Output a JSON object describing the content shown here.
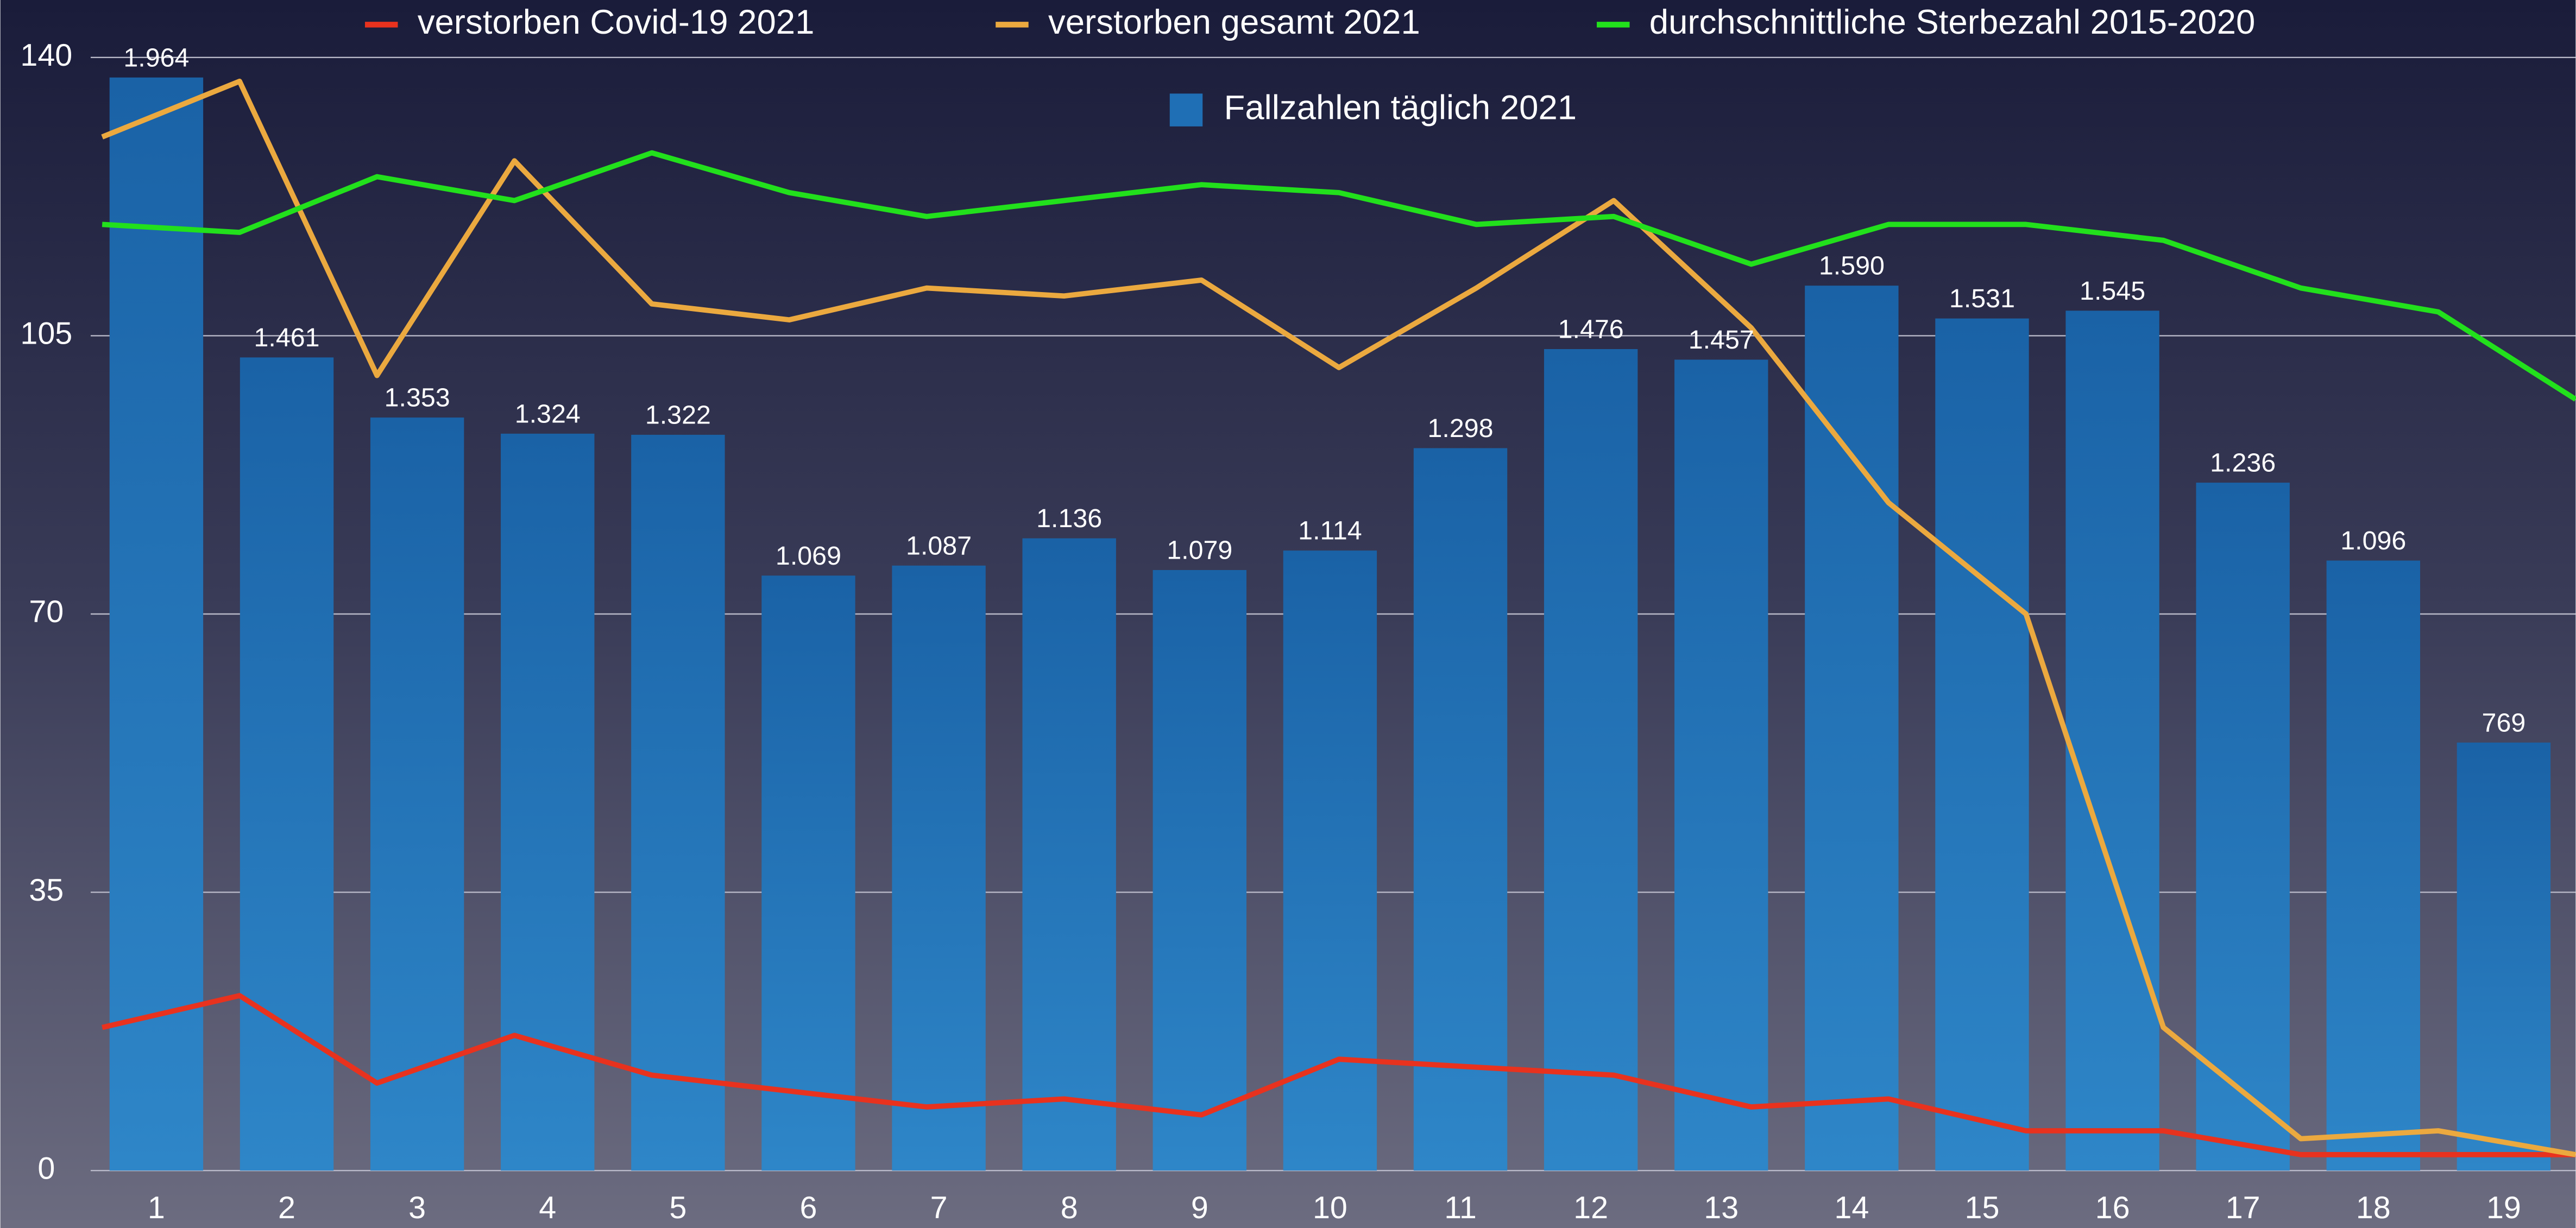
{
  "chart_data": {
    "type": "bar_line",
    "categories": [
      "1",
      "2",
      "3",
      "4",
      "5",
      "6",
      "7",
      "8",
      "9",
      "10",
      "11",
      "12",
      "13",
      "14",
      "15",
      "16",
      "17",
      "18",
      "19"
    ],
    "ylim": [
      0,
      140
    ],
    "yticks": [
      0,
      35,
      70,
      105,
      140
    ],
    "grid": true,
    "y2lim": [
      0,
      2000
    ],
    "bar_series": {
      "name": "Fallzahlen täglich 2021",
      "color": "#1f6fb5",
      "axis": "y2",
      "values": [
        1964,
        1461,
        1353,
        1324,
        1322,
        1069,
        1087,
        1136,
        1079,
        1114,
        1298,
        1476,
        1457,
        1590,
        1531,
        1545,
        1236,
        1096,
        769
      ],
      "value_labels": [
        "1.964",
        "1.461",
        "1.353",
        "1.324",
        "1.322",
        "1.069",
        "1.087",
        "1.136",
        "1.079",
        "1.114",
        "1.298",
        "1.476",
        "1.457",
        "1.590",
        "1.531",
        "1.545",
        "1.236",
        "1.096",
        "769"
      ]
    },
    "series": [
      {
        "name": "verstorben Covid-19 2021",
        "color": "#e8321e",
        "values": [
          18,
          22,
          11,
          17,
          12,
          10,
          8,
          9,
          7,
          14,
          13,
          12,
          8,
          9,
          5,
          5,
          2,
          2,
          2
        ]
      },
      {
        "name": "verstorben gesamt 2021",
        "color": "#eba93f",
        "values": [
          130,
          137,
          100,
          127,
          109,
          107,
          111,
          110,
          112,
          101,
          111,
          122,
          106,
          84,
          70,
          18,
          4,
          5,
          2
        ]
      },
      {
        "name": "durchschnittliche Sterbezahl 2015-2020",
        "color": "#22e01c",
        "values": [
          119,
          118,
          125,
          122,
          128,
          123,
          120,
          122,
          124,
          123,
          119,
          120,
          114,
          119,
          119,
          117,
          111,
          108,
          97
        ]
      }
    ]
  }
}
